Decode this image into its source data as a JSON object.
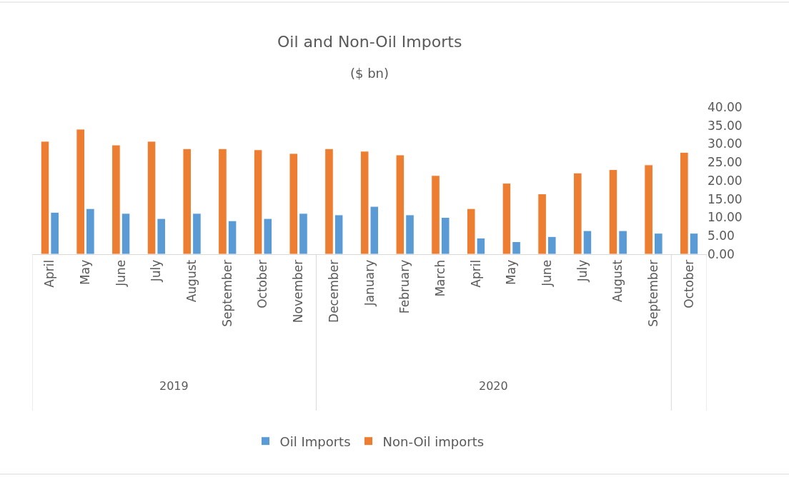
{
  "chart_data": {
    "type": "bar",
    "title": "Oil and Non-Oil Imports",
    "subtitle": "($ bn)",
    "categories": [
      "April",
      "May",
      "June",
      "July",
      "August",
      "September",
      "October",
      "November",
      "December",
      "January",
      "February",
      "March",
      "April",
      "May",
      "June",
      "July",
      "August",
      "September",
      "October"
    ],
    "series": [
      {
        "name": "Oil Imports",
        "color": "#5b9bd5",
        "values": [
          11.4,
          12.4,
          11.1,
          9.7,
          11.1,
          9.1,
          9.7,
          11.1,
          10.7,
          13.0,
          10.7,
          10.0,
          4.4,
          3.4,
          4.8,
          6.4,
          6.4,
          5.7,
          5.7
        ]
      },
      {
        "name": "Non-Oil imports",
        "color": "#ed7d31",
        "values": [
          30.7,
          34.0,
          29.7,
          30.7,
          28.7,
          28.7,
          28.4,
          27.4,
          28.7,
          28.0,
          27.0,
          21.4,
          12.4,
          19.3,
          16.4,
          22.1,
          23.0,
          24.3,
          27.7
        ]
      }
    ],
    "annotations": [
      "2019",
      "2020"
    ],
    "ylim": [
      0,
      40
    ],
    "yticks": [
      {
        "value": 0,
        "label": "0.00"
      },
      {
        "value": 5,
        "label": "5.00"
      },
      {
        "value": 10,
        "label": "10.00"
      },
      {
        "value": 15,
        "label": "15.00"
      },
      {
        "value": 20,
        "label": "20.00"
      },
      {
        "value": 25,
        "label": "25.00"
      },
      {
        "value": 30,
        "label": "30.00"
      },
      {
        "value": 35,
        "label": "35.00"
      },
      {
        "value": 40,
        "label": "40.00"
      }
    ],
    "legend": "bottom"
  }
}
